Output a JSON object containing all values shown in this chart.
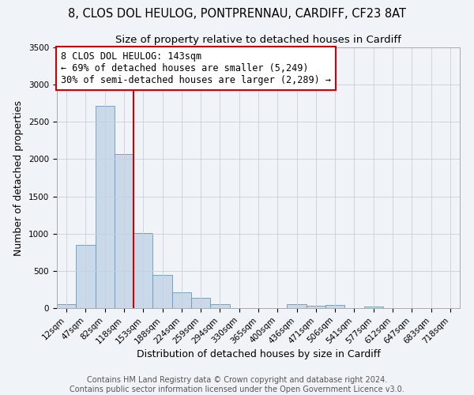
{
  "title": "8, CLOS DOL HEULOG, PONTPRENNAU, CARDIFF, CF23 8AT",
  "subtitle": "Size of property relative to detached houses in Cardiff",
  "xlabel": "Distribution of detached houses by size in Cardiff",
  "ylabel": "Number of detached properties",
  "bar_color": "#c9d9ea",
  "bar_edge_color": "#6699bb",
  "categories": [
    "12sqm",
    "47sqm",
    "82sqm",
    "118sqm",
    "153sqm",
    "188sqm",
    "224sqm",
    "259sqm",
    "294sqm",
    "330sqm",
    "365sqm",
    "400sqm",
    "436sqm",
    "471sqm",
    "506sqm",
    "541sqm",
    "577sqm",
    "612sqm",
    "647sqm",
    "683sqm",
    "718sqm"
  ],
  "values": [
    55,
    850,
    2720,
    2070,
    1010,
    450,
    210,
    140,
    55,
    5,
    5,
    5,
    55,
    30,
    40,
    5,
    20,
    5,
    5,
    5,
    5
  ],
  "vline_index": 4,
  "vline_color": "#cc0000",
  "annotation_line1": "8 CLOS DOL HEULOG: 143sqm",
  "annotation_line2": "← 69% of detached houses are smaller (5,249)",
  "annotation_line3": "30% of semi-detached houses are larger (2,289) →",
  "annotation_box_color": "#ffffff",
  "annotation_box_edge_color": "#cc0000",
  "ylim": [
    0,
    3500
  ],
  "yticks": [
    0,
    500,
    1000,
    1500,
    2000,
    2500,
    3000,
    3500
  ],
  "footer1": "Contains HM Land Registry data © Crown copyright and database right 2024.",
  "footer2": "Contains public sector information licensed under the Open Government Licence v3.0.",
  "background_color": "#f0f4f8",
  "grid_color": "#c8d0d8",
  "title_fontsize": 10.5,
  "subtitle_fontsize": 9.5,
  "axis_label_fontsize": 9,
  "tick_fontsize": 7.5,
  "annotation_fontsize": 8.5,
  "footer_fontsize": 7
}
